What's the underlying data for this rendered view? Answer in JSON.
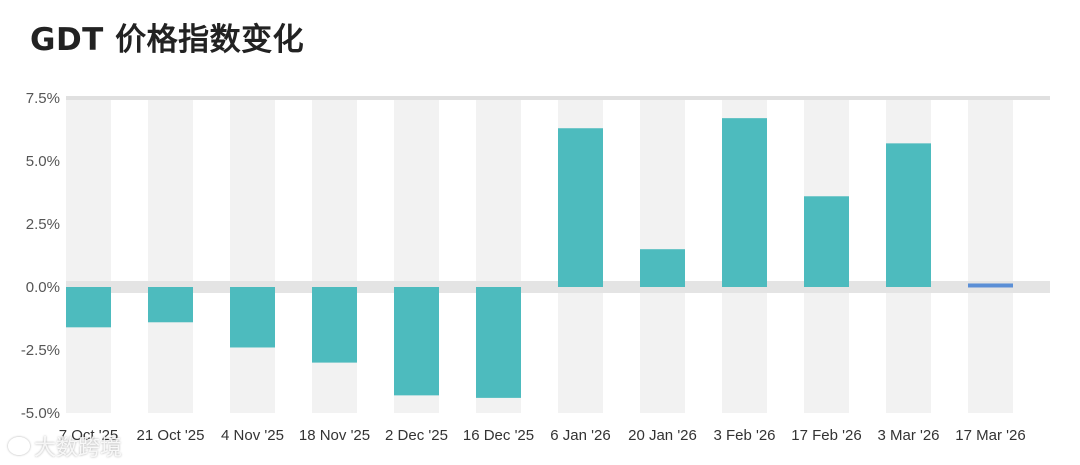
{
  "title": "GDT 价格指数变化",
  "watermark": "大数跨境",
  "colors": {
    "bar": "#4dbbbe",
    "last_bar": "#5b8fd6",
    "band": "#f2f2f2",
    "zero_band": "#e4e4e4",
    "top_line": "#e0e0e0"
  },
  "chart_data": {
    "type": "bar",
    "title": "GDT 价格指数变化",
    "xlabel": "",
    "ylabel": "",
    "ylim": [
      -5.0,
      7.5
    ],
    "yticks": [
      "7.5%",
      "5.0%",
      "2.5%",
      "0.0%",
      "-2.5%",
      "-5.0%"
    ],
    "ytick_values": [
      7.5,
      5.0,
      2.5,
      0.0,
      -2.5,
      -5.0
    ],
    "categories": [
      "7 Oct '25",
      "21 Oct '25",
      "4 Nov '25",
      "18 Nov '25",
      "2 Dec '25",
      "16 Dec '25",
      "6 Jan '26",
      "20 Jan '26",
      "3 Feb '26",
      "17 Feb '26",
      "3 Mar '26",
      "17 Mar '26"
    ],
    "values": [
      -1.6,
      -1.4,
      -2.4,
      -3.0,
      -4.3,
      -4.4,
      6.3,
      1.5,
      6.7,
      3.6,
      5.7,
      0.1
    ],
    "grid": true,
    "legend": "none"
  }
}
